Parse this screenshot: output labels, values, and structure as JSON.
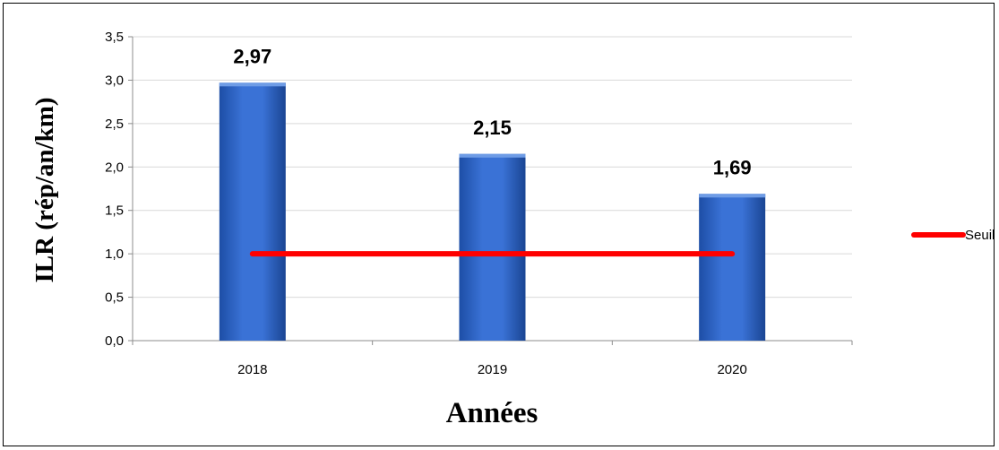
{
  "chart_data": {
    "type": "bar",
    "categories": [
      "2018",
      "2019",
      "2020"
    ],
    "series": [
      {
        "values": [
          2.97,
          2.15,
          1.69
        ],
        "color": "#2f64c6"
      },
      {
        "name": "Seuil",
        "type": "line",
        "values": [
          1.0,
          1.0,
          1.0
        ],
        "color": "#ff0000"
      }
    ],
    "data_labels": [
      "2,97",
      "2,15",
      "1,69"
    ],
    "y_ticks": [
      "0,0",
      "0,5",
      "1,0",
      "1,5",
      "2,0",
      "2,5",
      "3,0",
      "3,5"
    ],
    "ylim": [
      0,
      3.5
    ],
    "y_step": 0.5,
    "xlabel": "Années",
    "ylabel": "ILR (rép/an/km)",
    "legend_position": "right",
    "grid": true
  }
}
